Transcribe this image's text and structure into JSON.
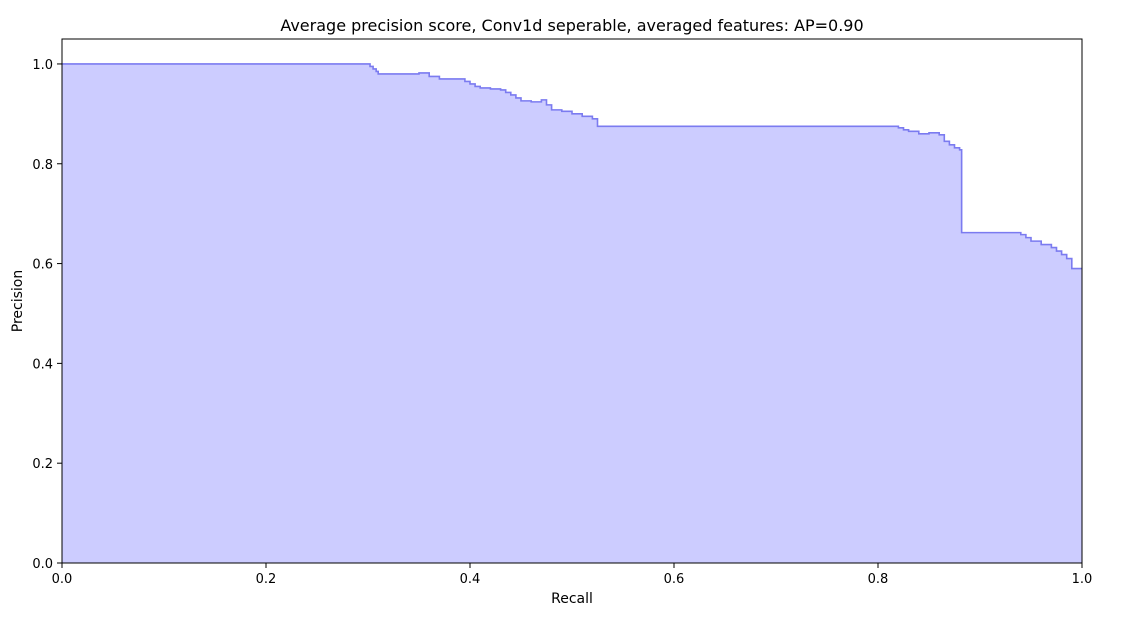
{
  "chart_data": {
    "type": "area",
    "title": "Average precision score, Conv1d seperable, averaged features: AP=0.90",
    "xlabel": "Recall",
    "ylabel": "Precision",
    "xlim": [
      0.0,
      1.0
    ],
    "ylim": [
      0.0,
      1.05
    ],
    "xticks": [
      "0.0",
      "0.2",
      "0.4",
      "0.6",
      "0.8",
      "1.0"
    ],
    "yticks": [
      "0.0",
      "0.2",
      "0.4",
      "0.6",
      "0.8",
      "1.0"
    ],
    "grid": false,
    "step": "post",
    "colors": {
      "line": "#7b7bf0",
      "fill": "#ccccff"
    },
    "series": [
      {
        "x": [
          0.0,
          0.302,
          0.305,
          0.308,
          0.31,
          0.315,
          0.35,
          0.36,
          0.37,
          0.39,
          0.395,
          0.4,
          0.405,
          0.41,
          0.42,
          0.43,
          0.435,
          0.44,
          0.445,
          0.45,
          0.46,
          0.47,
          0.475,
          0.48,
          0.49,
          0.5,
          0.51,
          0.52,
          0.525,
          0.815,
          0.82,
          0.825,
          0.83,
          0.84,
          0.85,
          0.86,
          0.865,
          0.87,
          0.875,
          0.88,
          0.882,
          0.935,
          0.94,
          0.945,
          0.95,
          0.96,
          0.97,
          0.975,
          0.98,
          0.985,
          0.99,
          1.0
        ],
        "y": [
          1.0,
          0.995,
          0.99,
          0.985,
          0.98,
          0.98,
          0.982,
          0.975,
          0.97,
          0.97,
          0.965,
          0.96,
          0.955,
          0.952,
          0.95,
          0.948,
          0.943,
          0.938,
          0.932,
          0.926,
          0.924,
          0.928,
          0.918,
          0.908,
          0.905,
          0.9,
          0.895,
          0.89,
          0.875,
          0.875,
          0.872,
          0.868,
          0.865,
          0.86,
          0.862,
          0.858,
          0.845,
          0.838,
          0.832,
          0.828,
          0.662,
          0.662,
          0.658,
          0.652,
          0.645,
          0.638,
          0.632,
          0.625,
          0.618,
          0.61,
          0.59,
          0.59
        ]
      }
    ]
  }
}
